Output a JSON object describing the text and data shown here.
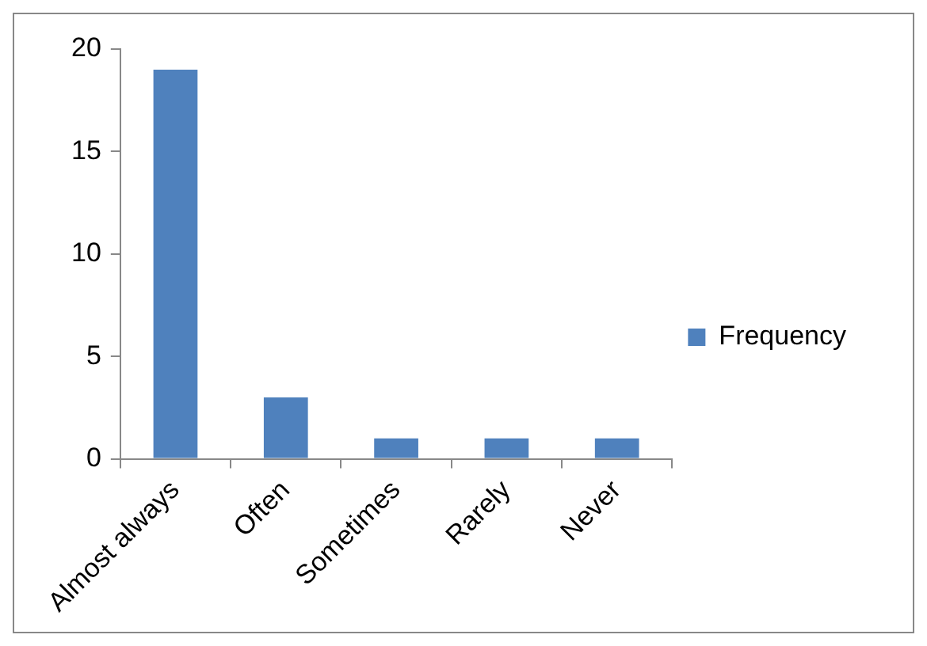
{
  "chart_data": {
    "type": "bar",
    "categories": [
      "Almost always",
      "Often",
      "Sometimes",
      "Rarely",
      "Never"
    ],
    "series": [
      {
        "name": "Frequency",
        "color": "#4f81bd",
        "values": [
          19,
          3,
          1,
          1,
          1
        ]
      }
    ],
    "ylim": [
      0,
      20
    ],
    "yticks": [
      0,
      5,
      10,
      15,
      20
    ],
    "grid": false,
    "legend": "right"
  }
}
